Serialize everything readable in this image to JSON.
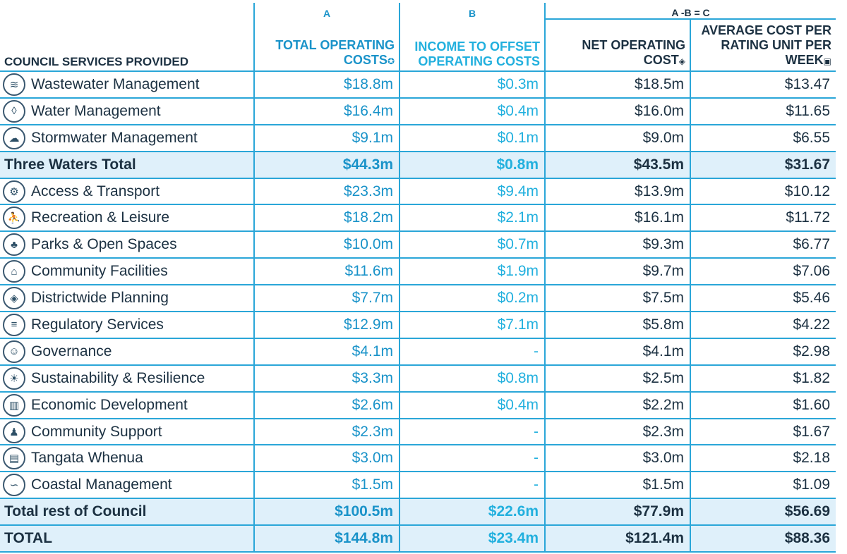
{
  "headers": {
    "letter_a": "A",
    "letter_b": "B",
    "letter_c": "A -B = C",
    "services": "COUNCIL SERVICES PROVIDED",
    "total_operating": "TOTAL OPERATING COSTS",
    "total_operating_mark": "✪",
    "income_offset": "INCOME TO OFFSET OPERATING COSTS",
    "net_operating": "NET OPERATING COST",
    "net_operating_mark": "◈",
    "average_cost": "AVERAGE COST PER RATING UNIT PER WEEK",
    "average_cost_mark": "▣"
  },
  "rows": [
    {
      "name": "Wastewater Management",
      "icon": "wastewater-icon",
      "a": "$18.8m",
      "b": "$0.3m",
      "c": "$18.5m",
      "avg": "$13.47"
    },
    {
      "name": "Water Management",
      "icon": "water-drop-icon",
      "a": "$16.4m",
      "b": "$0.4m",
      "c": "$16.0m",
      "avg": "$11.65"
    },
    {
      "name": "Stormwater Management",
      "icon": "storm-cloud-icon",
      "a": "$9.1m",
      "b": "$0.1m",
      "c": "$9.0m",
      "avg": "$6.55"
    },
    {
      "name": "Three Waters Total",
      "total": true,
      "a": "$44.3m",
      "b": "$0.8m",
      "c": "$43.5m",
      "avg": "$31.67"
    },
    {
      "name": "Access & Transport",
      "icon": "transport-icon",
      "a": "$23.3m",
      "b": "$9.4m",
      "c": "$13.9m",
      "avg": "$10.12"
    },
    {
      "name": "Recreation & Leisure",
      "icon": "recreation-icon",
      "a": "$18.2m",
      "b": "$2.1m",
      "c": "$16.1m",
      "avg": "$11.72"
    },
    {
      "name": "Parks & Open Spaces",
      "icon": "park-tree-icon",
      "a": "$10.0m",
      "b": "$0.7m",
      "c": "$9.3m",
      "avg": "$6.77"
    },
    {
      "name": "Community Facilities",
      "icon": "building-icon",
      "a": "$11.6m",
      "b": "$1.9m",
      "c": "$9.7m",
      "avg": "$7.06"
    },
    {
      "name": "Districtwide Planning",
      "icon": "map-icon",
      "a": "$7.7m",
      "b": "$0.2m",
      "c": "$7.5m",
      "avg": "$5.46"
    },
    {
      "name": "Regulatory Services",
      "icon": "document-icon",
      "a": "$12.9m",
      "b": "$7.1m",
      "c": "$5.8m",
      "avg": "$4.22"
    },
    {
      "name": "Governance",
      "icon": "people-icon",
      "a": "$4.1m",
      "b": "-",
      "c": "$4.1m",
      "avg": "$2.98"
    },
    {
      "name": "Sustainability & Resilience",
      "icon": "sustainability-icon",
      "a": "$3.3m",
      "b": "$0.8m",
      "c": "$2.5m",
      "avg": "$1.82"
    },
    {
      "name": "Economic Development",
      "icon": "bar-chart-icon",
      "a": "$2.6m",
      "b": "$0.4m",
      "c": "$2.2m",
      "avg": "$1.60"
    },
    {
      "name": "Community Support",
      "icon": "community-icon",
      "a": "$2.3m",
      "b": "-",
      "c": "$2.3m",
      "avg": "$1.67"
    },
    {
      "name": "Tangata Whenua",
      "icon": "carving-icon",
      "a": "$3.0m",
      "b": "-",
      "c": "$3.0m",
      "avg": "$2.18"
    },
    {
      "name": "Coastal Management",
      "icon": "wave-icon",
      "a": "$1.5m",
      "b": "-",
      "c": "$1.5m",
      "avg": "$1.09"
    },
    {
      "name": "Total rest of Council",
      "total": true,
      "a": "$100.5m",
      "b": "$22.6m",
      "c": "$77.9m",
      "avg": "$56.69"
    },
    {
      "name": "TOTAL",
      "total": true,
      "a": "$144.8m",
      "b": "$23.4m",
      "c": "$121.4m",
      "avg": "$88.36"
    }
  ]
}
